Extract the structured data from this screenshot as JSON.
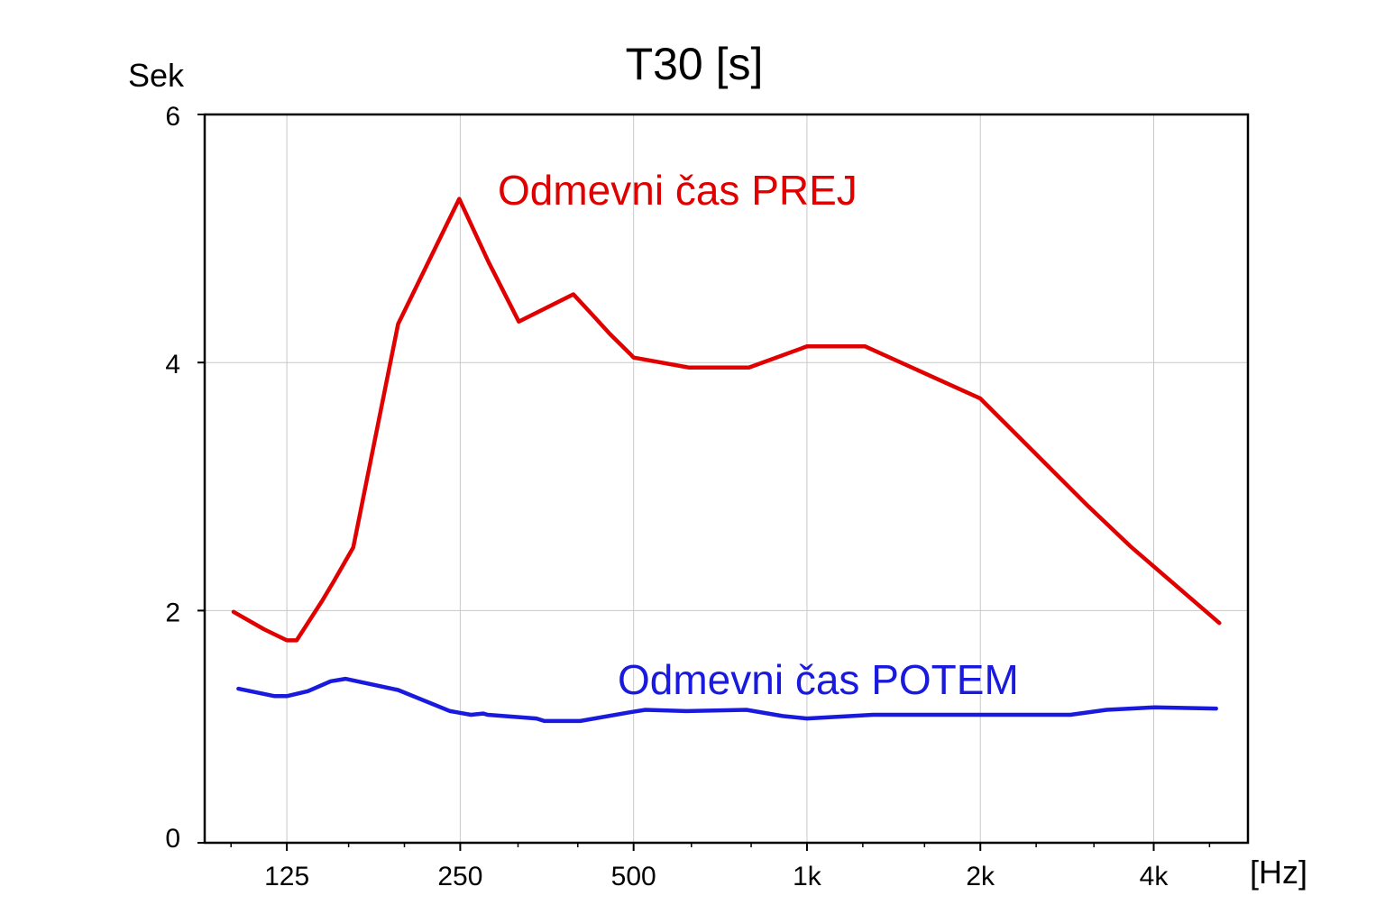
{
  "chart_data": {
    "type": "line",
    "title": "T30 [s]",
    "ylabel": "Sek",
    "xlabel": "[Hz]",
    "xscale": "log",
    "xlim": [
      90,
      5830
    ],
    "ylim": [
      0,
      6
    ],
    "yticks": [
      0,
      2,
      4,
      6
    ],
    "xticks": [
      {
        "value": 125,
        "label": "125"
      },
      {
        "value": 250,
        "label": "250"
      },
      {
        "value": 500,
        "label": "500"
      },
      {
        "value": 1000,
        "label": "1k"
      },
      {
        "value": 2000,
        "label": "2k"
      },
      {
        "value": 4000,
        "label": "4k"
      }
    ],
    "minor_xticks": [
      100,
      160,
      200,
      315,
      400,
      630,
      800,
      1250,
      1600,
      2500,
      3150,
      5000
    ],
    "grid": true,
    "series": [
      {
        "name": "Odmevni čas PREJ",
        "color": "#e00000",
        "x": [
          101,
          114,
          125,
          130,
          144,
          151,
          163,
          195,
          249,
          280,
          316,
          393,
          423,
          455,
          493,
          500,
          623,
          793,
          1000,
          1262,
          2000,
          3080,
          3640,
          5200
        ],
        "y": [
          1.99,
          1.85,
          1.76,
          1.76,
          2.08,
          2.24,
          2.51,
          4.31,
          5.32,
          4.81,
          4.33,
          4.55,
          4.39,
          4.23,
          4.07,
          4.04,
          3.96,
          3.96,
          4.13,
          4.13,
          3.71,
          2.84,
          2.52,
          1.9
        ]
      },
      {
        "name": "Odmevni čas POTEM",
        "color": "#1a1adf",
        "x": [
          103,
          119,
          125,
          136,
          149,
          158,
          195,
          240,
          261,
          274,
          279,
          339,
          350,
          404,
          493,
          524,
          616,
          785,
          907,
          1000,
          1303,
          2867,
          3313,
          4014,
          5134
        ],
        "y": [
          1.37,
          1.31,
          1.31,
          1.35,
          1.43,
          1.45,
          1.36,
          1.19,
          1.16,
          1.17,
          1.16,
          1.13,
          1.11,
          1.11,
          1.18,
          1.2,
          1.19,
          1.2,
          1.15,
          1.13,
          1.16,
          1.16,
          1.2,
          1.22,
          1.21
        ]
      }
    ]
  }
}
